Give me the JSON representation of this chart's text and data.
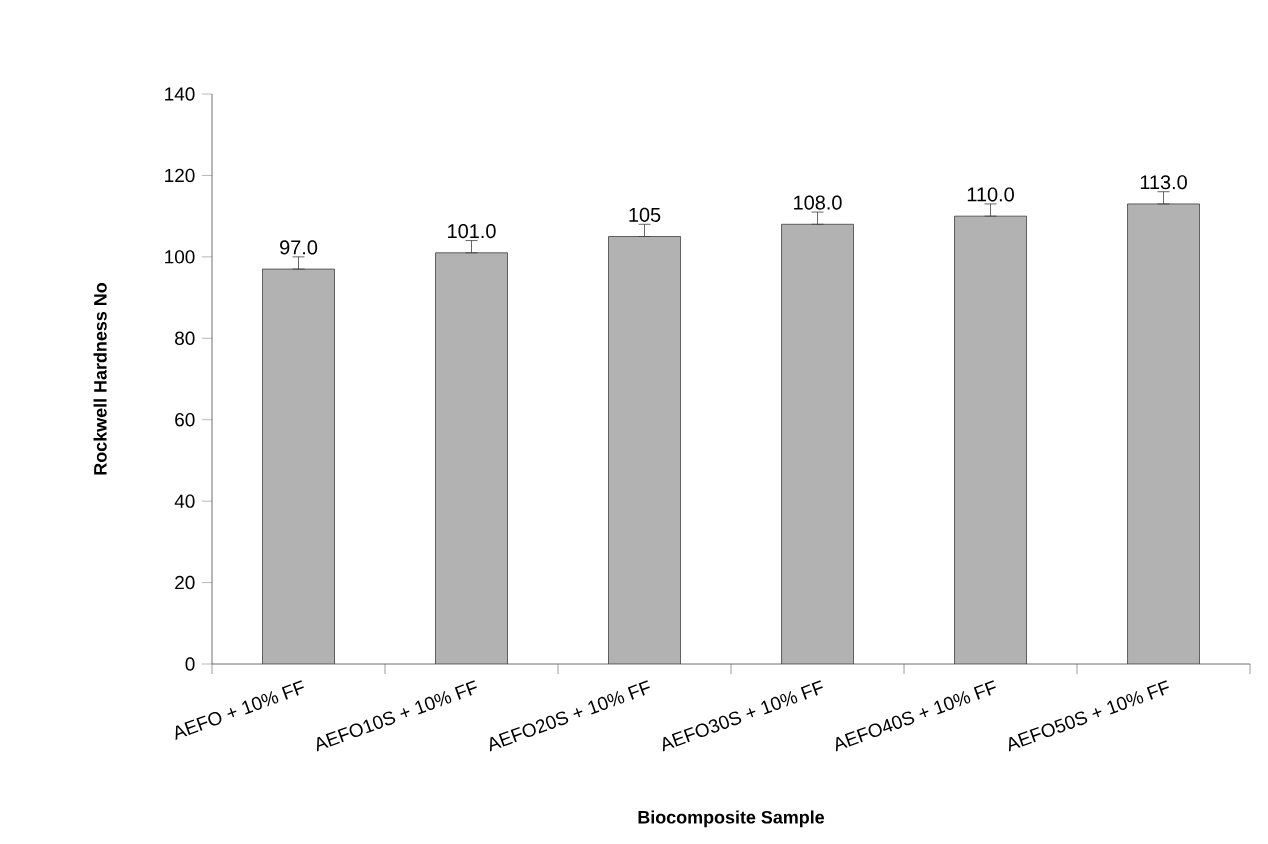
{
  "chart_data": {
    "type": "bar",
    "xlabel": "Biocomposite Sample",
    "ylabel": "Rockwell Hardness No",
    "categories": [
      "AEFO + 10% FF",
      "AEFO10S + 10% FF",
      "AEFO20S + 10% FF",
      "AEFO30S + 10% FF",
      "AEFO40S + 10% FF",
      "AEFO50S + 10% FF"
    ],
    "values": [
      97,
      101,
      105,
      108,
      110,
      113
    ],
    "errors": [
      [
        97,
        100
      ],
      [
        101,
        104
      ],
      [
        105,
        108
      ],
      [
        108,
        111
      ],
      [
        110,
        113
      ],
      [
        113,
        116
      ]
    ],
    "value_labels": [
      "97.0",
      "101.0",
      "105",
      "108.0",
      "110.0",
      "113.0"
    ],
    "color": "#b2b2b2",
    "ylim": [
      0,
      140
    ],
    "yticks": [
      0,
      20,
      40,
      60,
      80,
      100,
      120,
      140
    ],
    "grid": false
  }
}
